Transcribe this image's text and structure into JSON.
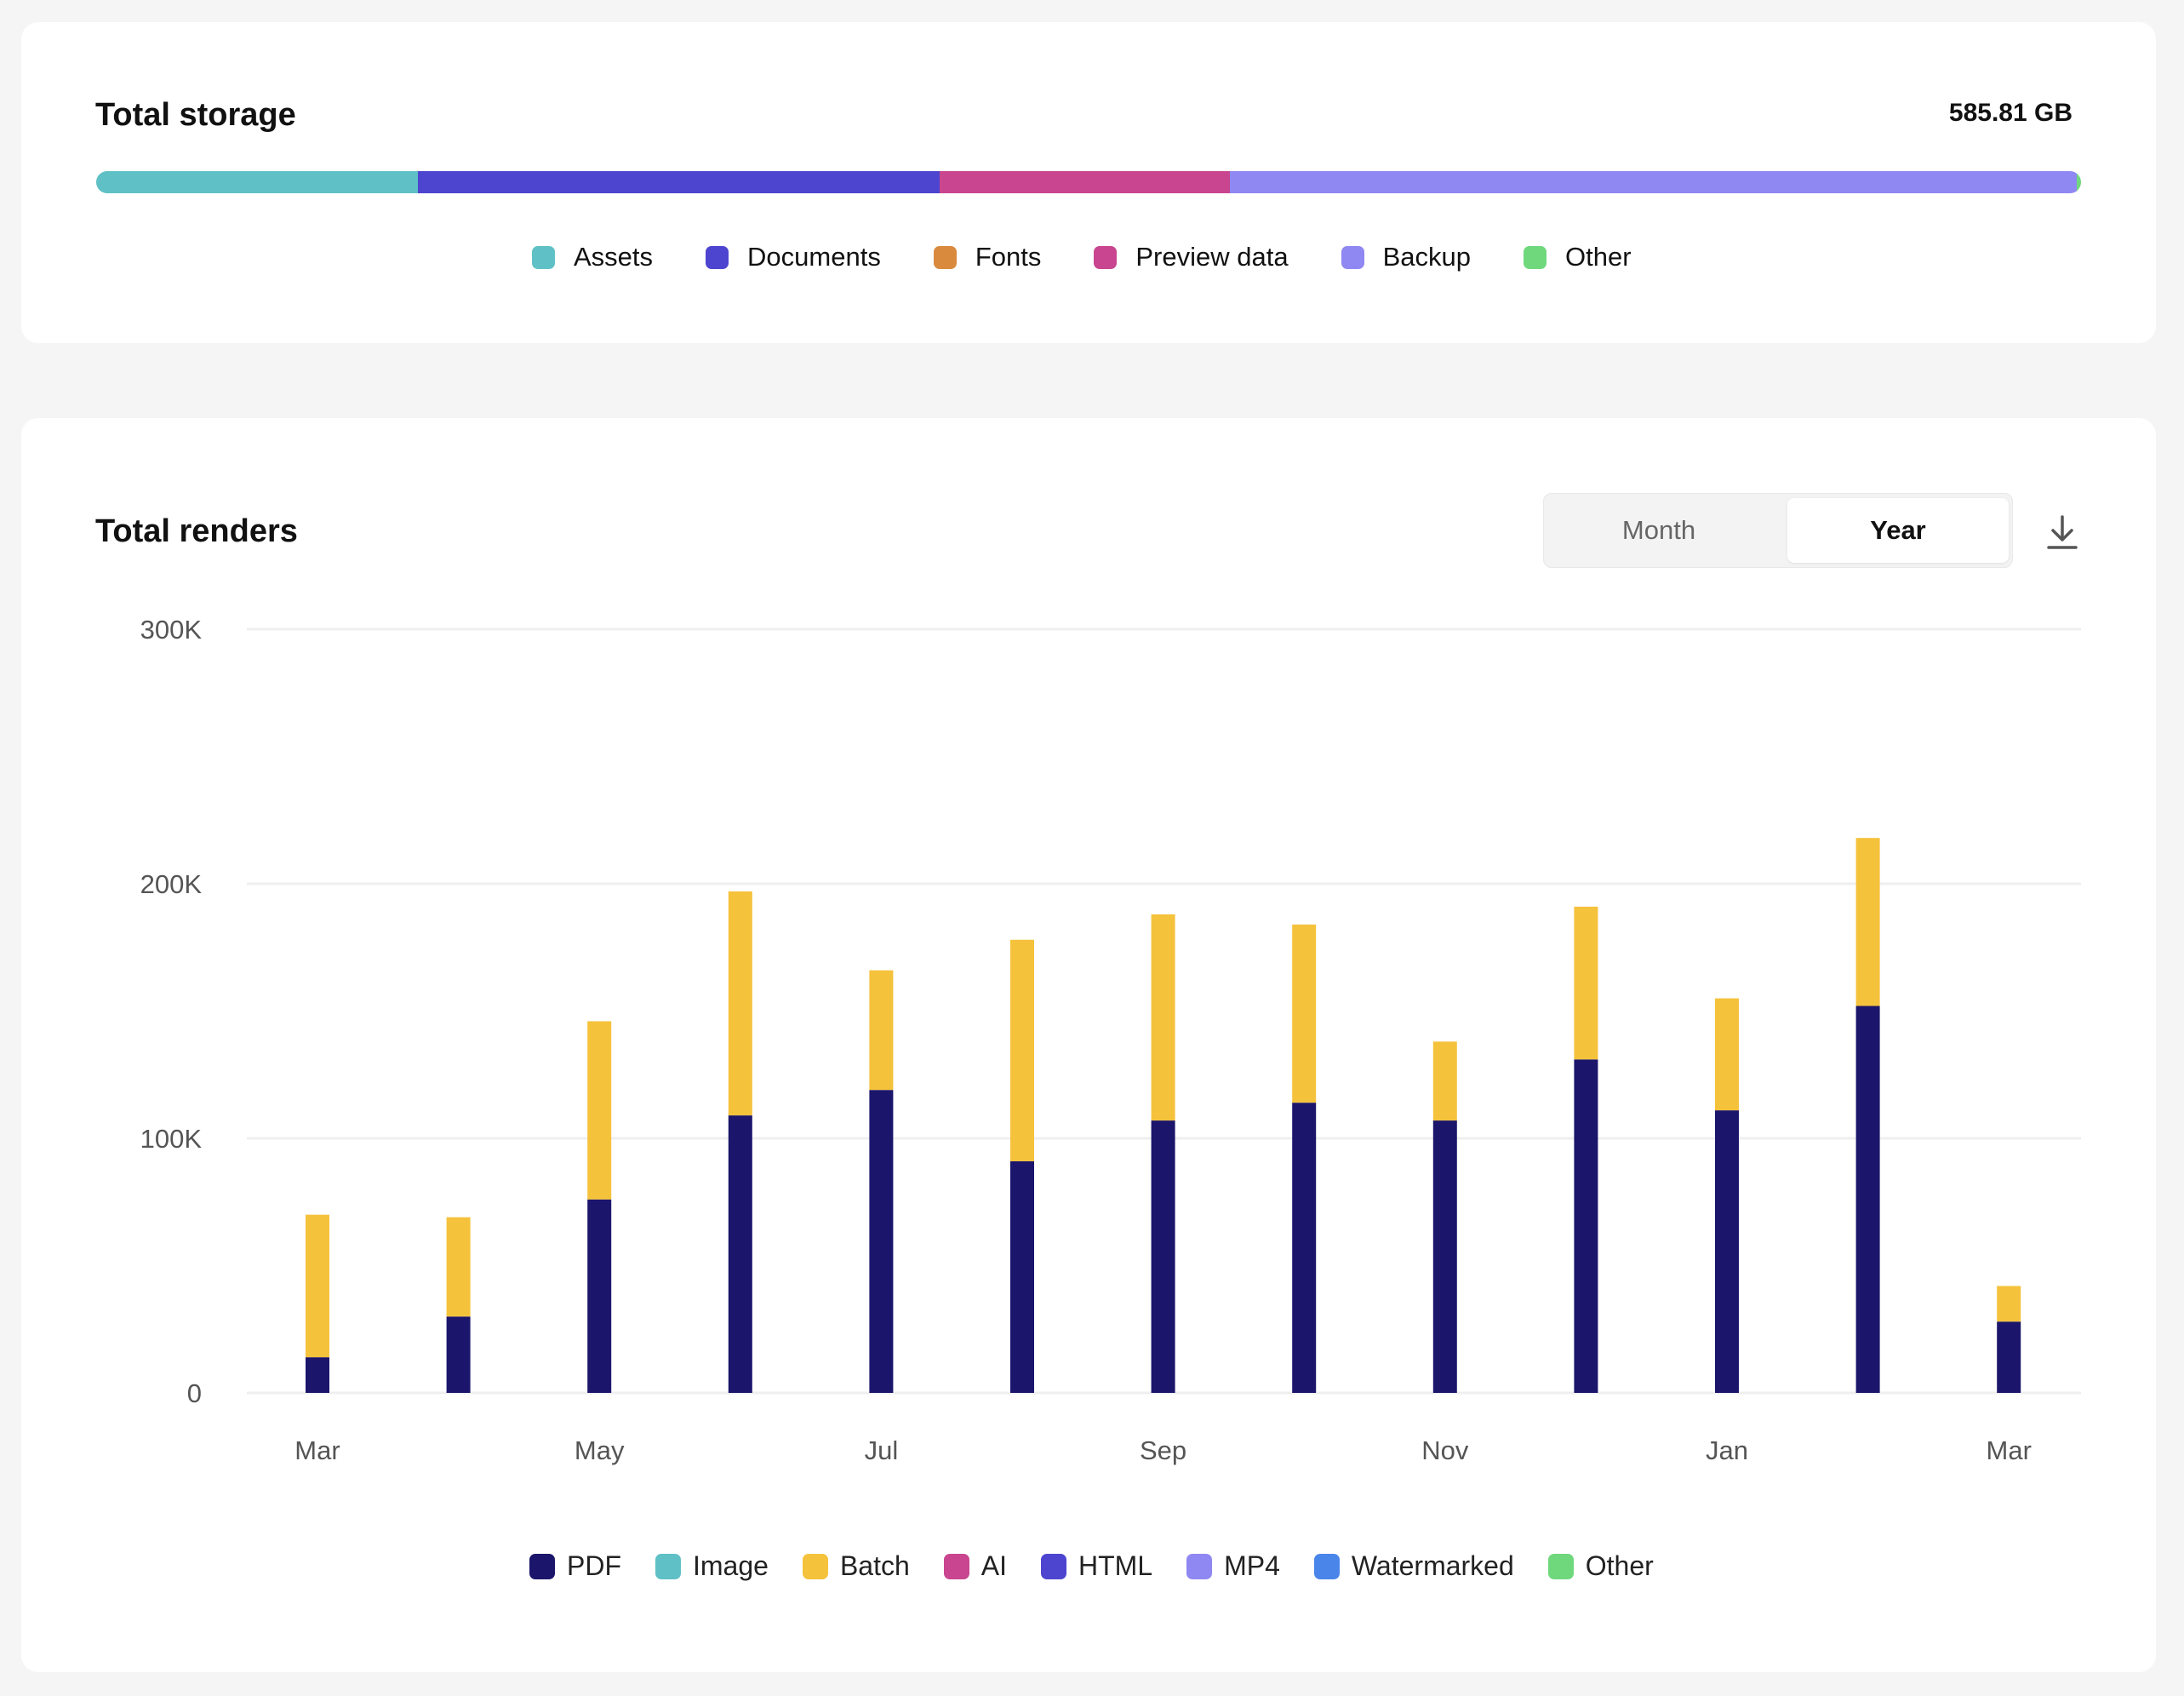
{
  "storage": {
    "title": "Total storage",
    "total": "585.81 GB",
    "segments": [
      {
        "name": "Assets",
        "fraction": 0.162,
        "color": "#5fc1c6"
      },
      {
        "name": "Documents",
        "fraction": 0.263,
        "color": "#4d45cf"
      },
      {
        "name": "Fonts",
        "fraction": 0.0,
        "color": "#d98a3d"
      },
      {
        "name": "Preview data",
        "fraction": 0.146,
        "color": "#c9458f"
      },
      {
        "name": "Backup",
        "fraction": 0.427,
        "color": "#8f87f2"
      },
      {
        "name": "Other",
        "fraction": 0.002,
        "color": "#6fd87d"
      }
    ]
  },
  "renders": {
    "title": "Total renders",
    "toggle": {
      "month_label": "Month",
      "year_label": "Year",
      "selected": "Year"
    },
    "download_icon": "download-icon"
  },
  "chart_data": {
    "type": "bar",
    "stacked": true,
    "title": "Total renders",
    "x_tick_labels": [
      "Mar",
      "",
      "May",
      "",
      "Jul",
      "",
      "Sep",
      "",
      "Nov",
      "",
      "Jan",
      "",
      "Mar"
    ],
    "ylim": [
      0,
      300000
    ],
    "y_ticks": [
      {
        "value": 0,
        "label": "0"
      },
      {
        "value": 100000,
        "label": "100K"
      },
      {
        "value": 200000,
        "label": "200K"
      },
      {
        "value": 300000,
        "label": "300K"
      }
    ],
    "grid": true,
    "legend_position": "bottom",
    "legend": [
      {
        "name": "PDF",
        "color": "#1b166b"
      },
      {
        "name": "Image",
        "color": "#5fc1c6"
      },
      {
        "name": "Batch",
        "color": "#f5c23c"
      },
      {
        "name": "AI",
        "color": "#c9458f"
      },
      {
        "name": "HTML",
        "color": "#4d45cf"
      },
      {
        "name": "MP4",
        "color": "#8f87f2"
      },
      {
        "name": "Watermarked",
        "color": "#4a85ea"
      },
      {
        "name": "Other",
        "color": "#6fd87d"
      }
    ],
    "series": [
      {
        "name": "PDF",
        "color": "#1b166b",
        "values": [
          14000,
          30000,
          76000,
          109000,
          119000,
          91000,
          107000,
          114000,
          107000,
          131000,
          111000,
          152000,
          28000
        ]
      },
      {
        "name": "Batch",
        "color": "#f5c23c",
        "values": [
          56000,
          39000,
          70000,
          88000,
          47000,
          87000,
          81000,
          70000,
          31000,
          60000,
          44000,
          66000,
          14000
        ]
      }
    ]
  }
}
